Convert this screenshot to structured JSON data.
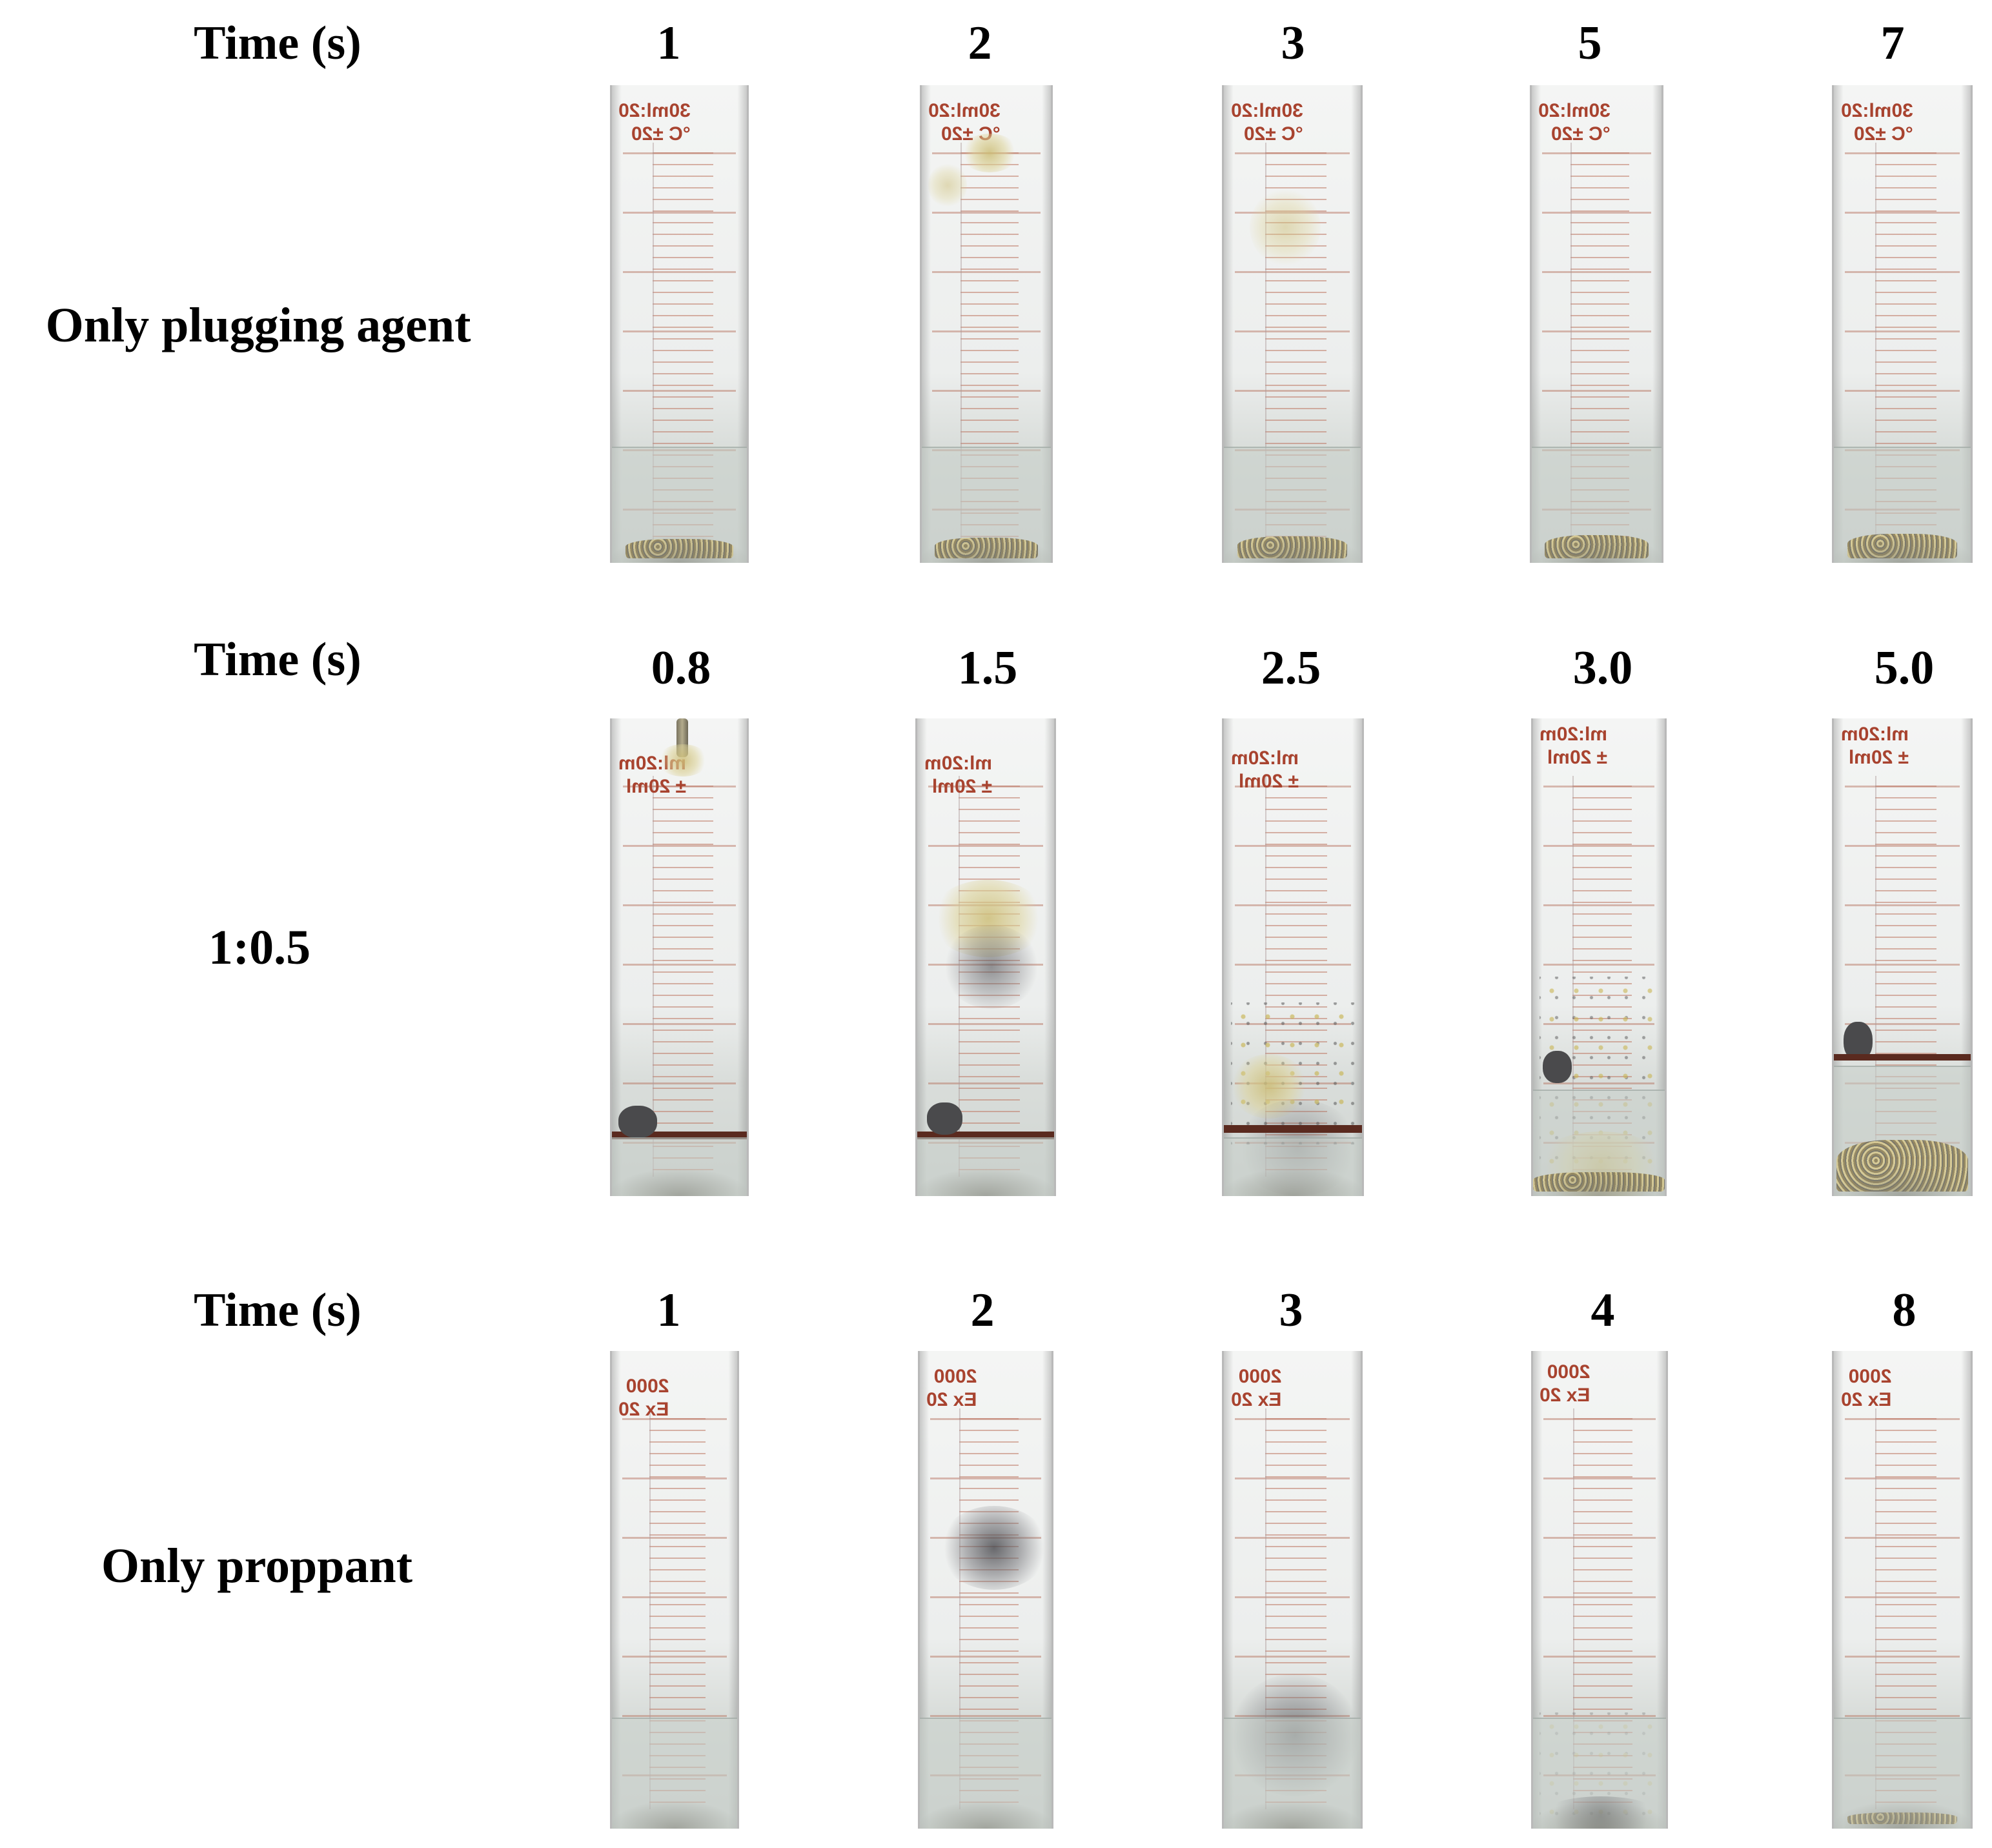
{
  "rows": [
    {
      "header": "Time (s)",
      "label": "Only plugging agent",
      "times": [
        "1",
        "2",
        "3",
        "5",
        "7"
      ],
      "tube_marking": "30ml:20\n°C ±20"
    },
    {
      "header": "Time (s)",
      "label": "1:0.5",
      "times": [
        "0.8",
        "1.5",
        "2.5",
        "3.0",
        "5.0"
      ],
      "tube_marking": "ml:20m\n± 20ml"
    },
    {
      "header": "Time (s)",
      "label": "Only proppant",
      "times": [
        "1",
        "2",
        "3",
        "4",
        "8"
      ],
      "tube_marking": "2000\nEx 20"
    }
  ]
}
